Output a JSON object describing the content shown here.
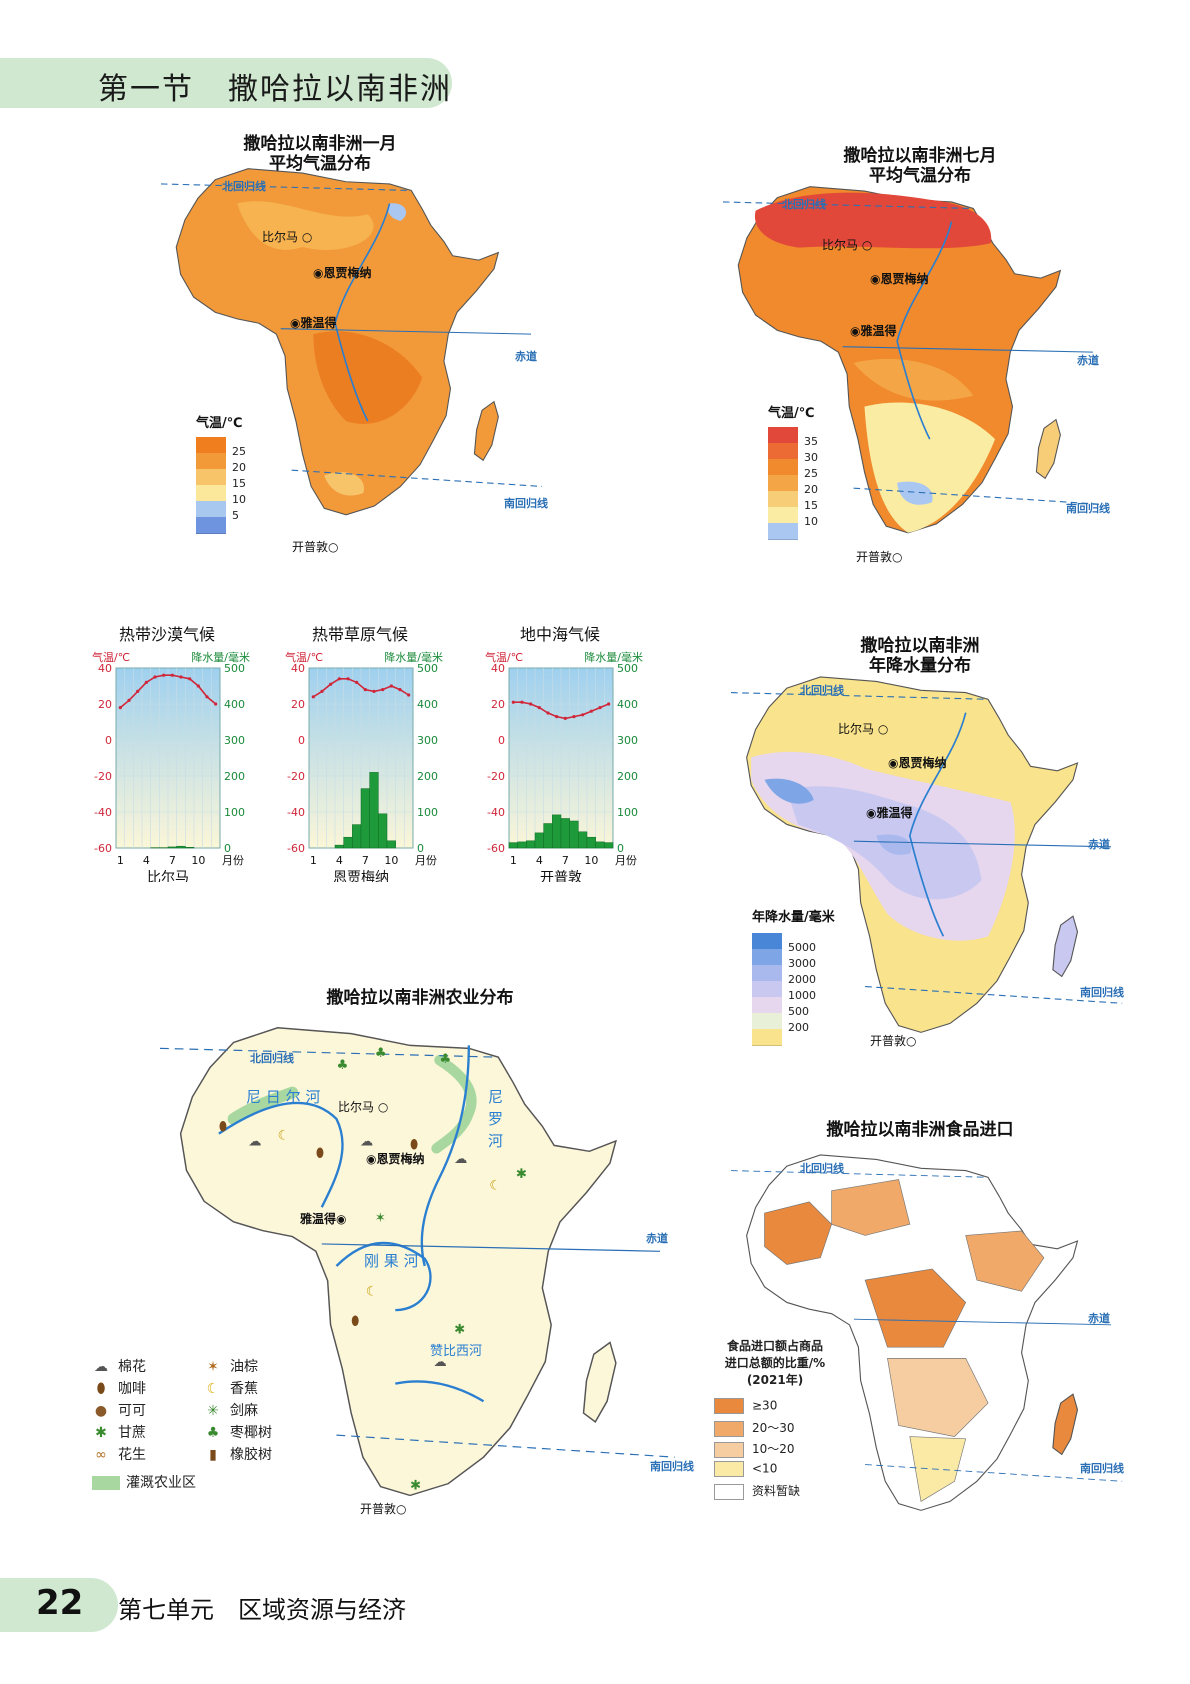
{
  "header": {
    "section": "第一节",
    "title": "撒哈拉以南非洲"
  },
  "footer": {
    "page": "22",
    "unit": "第七单元",
    "unit_title": "区域资源与经济"
  },
  "common_labels": {
    "tropic_north": "北回归线",
    "equator": "赤道",
    "tropic_south": "南回归线"
  },
  "cities": {
    "bilma": "比尔马",
    "ndjamena": "恩贾梅纳",
    "yaounde": "雅温得",
    "cape_town": "开普敦"
  },
  "rivers": {
    "niger1": "尼",
    "niger2": "日",
    "niger3": "尔",
    "niger4": "河",
    "nile1": "尼",
    "nile2": "罗",
    "nile3": "河",
    "congo1": "刚",
    "congo2": "果",
    "congo3": "河",
    "zambezi1": "赞",
    "zambezi2": "比",
    "zambezi3": "西",
    "zambezi4": "河"
  },
  "jan_map": {
    "title_line1": "撒哈拉以南非洲一月",
    "title_line2": "平均气温分布",
    "legend_title": "气温/℃",
    "legend_labels": [
      "25",
      "20",
      "15",
      "10",
      "5"
    ],
    "legend_colors": [
      "#f07d1e",
      "#f39a38",
      "#f8c46a",
      "#fbe89a",
      "#a8c8f0",
      "#6e94e0"
    ]
  },
  "jul_map": {
    "title_line1": "撒哈拉以南非洲七月",
    "title_line2": "平均气温分布",
    "legend_title": "气温/℃",
    "legend_labels": [
      "35",
      "30",
      "25",
      "20",
      "15",
      "10"
    ],
    "legend_colors": [
      "#e2483a",
      "#ec6a34",
      "#f08a2c",
      "#f4a646",
      "#f8cd78",
      "#fbeca4",
      "#a9c7f0"
    ]
  },
  "rain_map": {
    "title_line1": "撒哈拉以南非洲",
    "title_line2": "年降水量分布",
    "legend_title": "年降水量/毫米",
    "legend_labels": [
      "5000",
      "3000",
      "2000",
      "1000",
      "500",
      "200"
    ],
    "legend_colors": [
      "#4a86d8",
      "#7ea6e6",
      "#a9b9ee",
      "#c8c8f0",
      "#e6d6ee",
      "#e8f0d8",
      "#f9e38c"
    ]
  },
  "ag_map": {
    "title": "撒哈拉以南非洲农业分布",
    "legend": [
      {
        "icon": "cotton-icon",
        "label": "棉花"
      },
      {
        "icon": "coffee-icon",
        "label": "咖啡"
      },
      {
        "icon": "cocoa-icon",
        "label": "可可"
      },
      {
        "icon": "sugarcane-icon",
        "label": "甘蔗"
      },
      {
        "icon": "peanut-icon",
        "label": "花生"
      },
      {
        "icon": "oil-palm-icon",
        "label": "油棕"
      },
      {
        "icon": "banana-icon",
        "label": "香蕉"
      },
      {
        "icon": "sisal-icon",
        "label": "剑麻"
      },
      {
        "icon": "date-palm-icon",
        "label": "枣椰树"
      },
      {
        "icon": "rubber-icon",
        "label": "橡胶树"
      }
    ],
    "irrigation_label": "灌溉农业区",
    "colors": {
      "land": "#fdf7da",
      "irrigation": "#a8d8a0"
    }
  },
  "food_map": {
    "title": "撒哈拉以南非洲食品进口",
    "legend_title_line1": "食品进口额占商品",
    "legend_title_line2": "进口总额的比重/%",
    "legend_title_line3": "(2021年)",
    "legend": [
      {
        "label": "≥30",
        "color": "#e8893e"
      },
      {
        "label": "20～30",
        "color": "#f0a968"
      },
      {
        "label": "10～20",
        "color": "#f6cda0"
      },
      {
        "label": "<10",
        "color": "#fbeaa6"
      },
      {
        "label": "资料暂缺",
        "color": "#ffffff"
      }
    ]
  },
  "climate_charts": [
    {
      "name": "热带沙漠气候",
      "station": "比尔马",
      "temp_label": "气温/℃",
      "precip_label": "降水量/毫米",
      "month_label": "月份",
      "temp_ticks": [
        "40",
        "20",
        "0",
        "-20",
        "-40",
        "-60"
      ],
      "precip_ticks": [
        "500",
        "400",
        "300",
        "200",
        "100",
        "0"
      ],
      "month_ticks": [
        "1",
        "4",
        "7",
        "10"
      ],
      "temps": [
        18,
        22,
        27,
        32,
        35,
        36,
        36,
        35,
        34,
        30,
        24,
        20
      ],
      "precip": [
        0,
        0,
        0,
        0,
        1,
        1,
        3,
        5,
        2,
        0,
        0,
        0
      ]
    },
    {
      "name": "热带草原气候",
      "station": "恩贾梅纳",
      "temp_label": "气温/℃",
      "precip_label": "降水量/毫米",
      "month_label": "月份",
      "temp_ticks": [
        "40",
        "20",
        "0",
        "-20",
        "-40",
        "-60"
      ],
      "precip_ticks": [
        "500",
        "400",
        "300",
        "200",
        "100",
        "0"
      ],
      "month_ticks": [
        "1",
        "4",
        "7",
        "10"
      ],
      "temps": [
        24,
        27,
        31,
        34,
        34,
        32,
        28,
        27,
        28,
        30,
        28,
        25
      ],
      "precip": [
        0,
        0,
        0,
        8,
        30,
        65,
        165,
        210,
        95,
        20,
        0,
        0
      ]
    },
    {
      "name": "地中海气候",
      "station": "开普敦",
      "temp_label": "气温/℃",
      "precip_label": "降水量/毫米",
      "month_label": "月份",
      "temp_ticks": [
        "40",
        "20",
        "0",
        "-20",
        "-40",
        "-60"
      ],
      "precip_ticks": [
        "500",
        "400",
        "300",
        "200",
        "100",
        "0"
      ],
      "month_ticks": [
        "1",
        "4",
        "7",
        "10"
      ],
      "temps": [
        21,
        21,
        20,
        18,
        15,
        13,
        12,
        13,
        14,
        16,
        18,
        20
      ],
      "precip": [
        15,
        17,
        20,
        42,
        68,
        92,
        82,
        75,
        45,
        30,
        17,
        15
      ]
    }
  ]
}
